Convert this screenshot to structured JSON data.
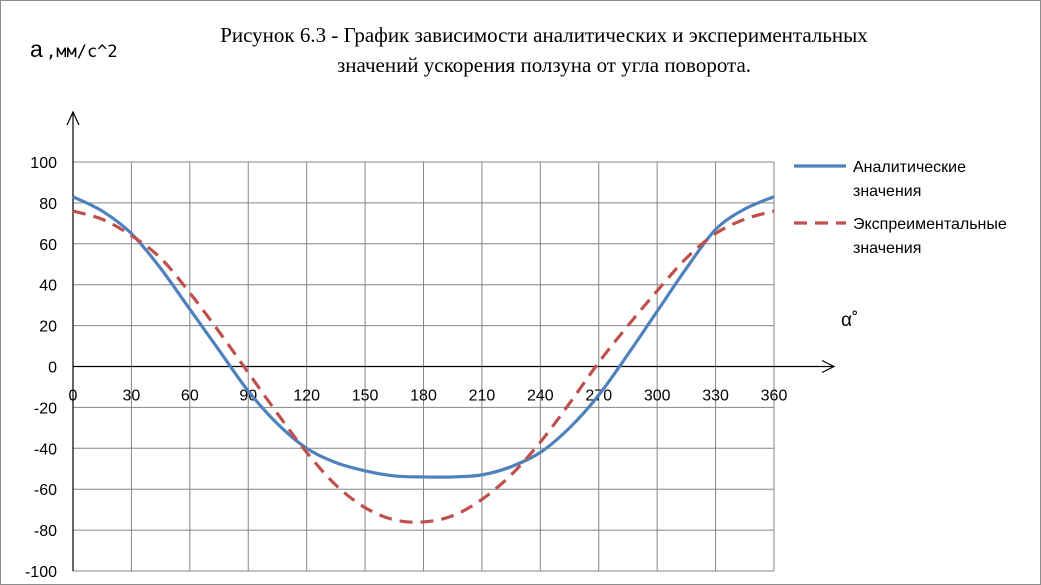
{
  "chart_data": {
    "type": "line",
    "title_line1": "Рисунок 6.3 - График зависимости аналитических и экспериментальных",
    "title_line2": "значений ускорения ползуна от угла поворота.",
    "ylabel_main": "a",
    "ylabel_unit": ",мм/с^2",
    "xlabel": "α˚",
    "xlim": [
      0,
      360
    ],
    "ylim": [
      -100,
      100
    ],
    "x_ticks": [
      0,
      30,
      60,
      90,
      120,
      150,
      180,
      210,
      240,
      270,
      300,
      330,
      360
    ],
    "y_ticks": [
      100,
      80,
      60,
      40,
      20,
      0,
      -20,
      -40,
      -60,
      -80,
      -100
    ],
    "grid": true,
    "legend_position": "right",
    "series": [
      {
        "name": "Аналитические значения",
        "legend_line1": "Аналитические",
        "legend_line2": "значения",
        "color": "#4f81bd",
        "style": "solid",
        "x": [
          0,
          15,
          30,
          45,
          60,
          75,
          90,
          105,
          120,
          135,
          150,
          165,
          180,
          195,
          210,
          225,
          240,
          255,
          270,
          285,
          300,
          315,
          330,
          345,
          360
        ],
        "values": [
          83,
          76,
          65,
          48,
          28,
          8,
          -12,
          -28,
          -40,
          -47,
          -51,
          -53.5,
          -54,
          -54,
          -53,
          -49,
          -42,
          -30,
          -14,
          6,
          27,
          48,
          67,
          77,
          83
        ]
      },
      {
        "name": "Экспреиментальные значения",
        "legend_line1": "Экспреиментальные",
        "legend_line2": "значения",
        "color": "#c0504d",
        "style": "dashed",
        "x": [
          0,
          15,
          30,
          45,
          60,
          75,
          90,
          105,
          120,
          135,
          150,
          165,
          180,
          195,
          210,
          225,
          240,
          255,
          270,
          285,
          300,
          315,
          330,
          345,
          360
        ],
        "values": [
          76,
          72,
          64,
          53,
          36,
          17,
          -3,
          -23,
          -42,
          -58,
          -69,
          -75,
          -76,
          -73,
          -65,
          -53,
          -37,
          -18,
          2,
          20,
          37,
          53,
          65,
          72,
          76
        ]
      }
    ]
  }
}
